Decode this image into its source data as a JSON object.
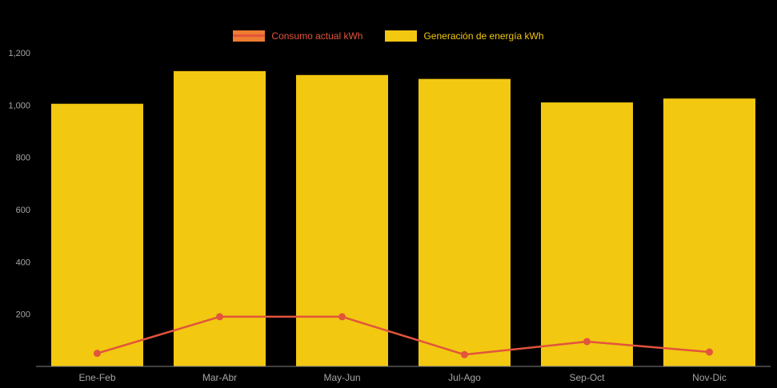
{
  "background_color": "#000000",
  "colors": {
    "bar": "#F2C811",
    "line": "#E2543C",
    "legend_line_swatch": "#ED7D31",
    "axis_label": "#A6A6A6",
    "axis_line": "#7F7F7F"
  },
  "legend": {
    "position": "top-center",
    "items": [
      {
        "label": "Consumo actual kWh",
        "type": "line",
        "swatch_fill": "#ED7D31",
        "stripe_color": "#E2543C",
        "text_color": "#E2543C"
      },
      {
        "label": "Generación de energía kWh",
        "type": "bar",
        "swatch_fill": "#F2C811",
        "stripe_color": "",
        "text_color": "#F2C811"
      }
    ]
  },
  "chart_data": {
    "type": "bar",
    "subtype": "bar-line-combo",
    "title": "",
    "xlabel": "",
    "ylabel": "",
    "categories": [
      "Ene-Feb",
      "Mar-Abr",
      "May-Jun",
      "Jul-Ago",
      "Sep-Oct",
      "Nov-Dic"
    ],
    "series": [
      {
        "name": "Generación de energía kWh",
        "type": "bar",
        "color": "#F2C811",
        "values": [
          1005,
          1130,
          1115,
          1100,
          1010,
          1025
        ]
      },
      {
        "name": "Consumo actual kWh",
        "type": "line",
        "color": "#E2543C",
        "values": [
          50,
          190,
          190,
          45,
          95,
          55
        ]
      }
    ],
    "ylim": [
      0,
      1200
    ],
    "y_ticks": [
      {
        "value": 200,
        "label": "200"
      },
      {
        "value": 400,
        "label": "400"
      },
      {
        "value": 600,
        "label": "600"
      },
      {
        "value": 800,
        "label": "800"
      },
      {
        "value": 1000,
        "label": "1,000"
      },
      {
        "value": 1200,
        "label": "1,200"
      }
    ],
    "grid": false,
    "legend_position": "top-center"
  }
}
